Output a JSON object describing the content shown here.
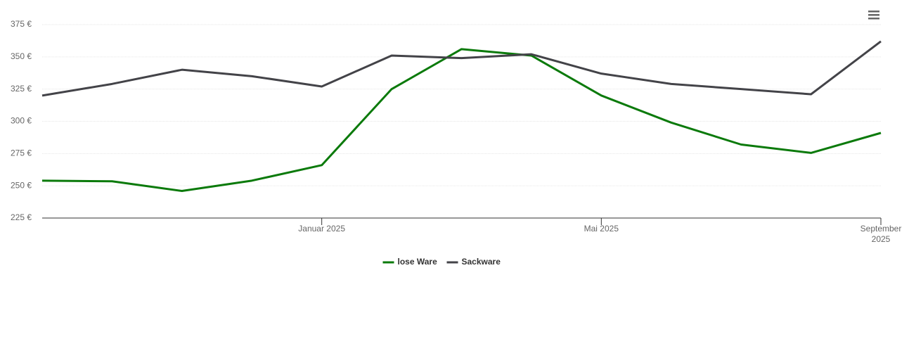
{
  "chart_data": {
    "type": "line",
    "x": [
      "2024-09",
      "2024-10",
      "2024-11",
      "2024-12",
      "2025-01",
      "2025-02",
      "2025-03",
      "2025-04",
      "2025-05",
      "2025-06",
      "2025-07",
      "2025-08",
      "2025-09"
    ],
    "series": [
      {
        "name": "lose Ware",
        "color": "#0b7a0b",
        "values": [
          254,
          253.5,
          246,
          254,
          266,
          325,
          356,
          351,
          320,
          299,
          282,
          275.5,
          291
        ]
      },
      {
        "name": "Sackware",
        "color": "#434348",
        "values": [
          320,
          329,
          340,
          335,
          327,
          351,
          349,
          352,
          337,
          329,
          325,
          321,
          362
        ]
      }
    ],
    "xlim": [
      "2024-09",
      "2025-09"
    ],
    "xticks": [
      {
        "value": "2025-01",
        "label": "Januar 2025"
      },
      {
        "value": "2025-05",
        "label": "Mai 2025"
      },
      {
        "value": "2025-09",
        "label": "September 2025"
      }
    ],
    "ylim": [
      225,
      375
    ],
    "yticks": [
      {
        "value": 225,
        "label": "225 €"
      },
      {
        "value": 250,
        "label": "250 €"
      },
      {
        "value": 275,
        "label": "275 €"
      },
      {
        "value": 300,
        "label": "300 €"
      },
      {
        "value": 325,
        "label": "325 €"
      },
      {
        "value": 350,
        "label": "350 €"
      },
      {
        "value": 375,
        "label": "375 €"
      }
    ],
    "grid": true,
    "legend": "bottom"
  }
}
